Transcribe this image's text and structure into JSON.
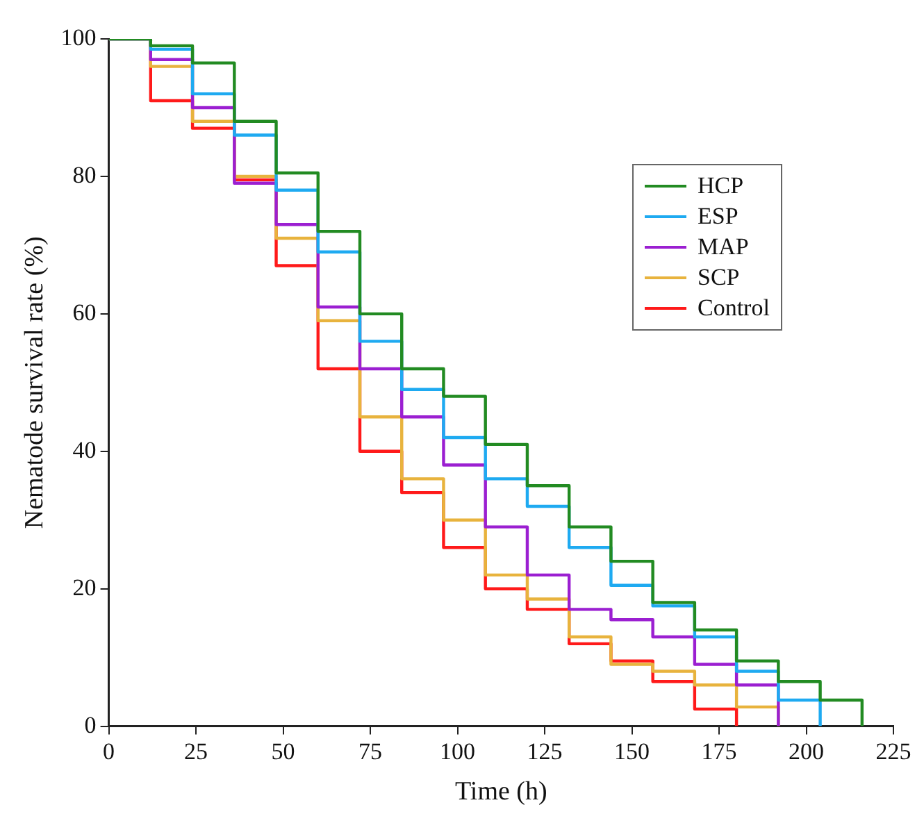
{
  "chart_data": {
    "type": "step",
    "xlabel": "Time (h)",
    "ylabel": "Nematode survival rate (%)",
    "xlim": [
      0,
      225
    ],
    "xticks": [
      0,
      25,
      50,
      75,
      100,
      125,
      150,
      175,
      200,
      225
    ],
    "ylim": [
      0,
      100
    ],
    "yticks": [
      0,
      20,
      40,
      60,
      80,
      100
    ],
    "grid": false,
    "legend": "top right",
    "marker": "none",
    "line_style": "solid",
    "series": [
      {
        "name": "HCP",
        "color": "#228b22",
        "x": [
          0,
          12,
          24,
          36,
          48,
          60,
          72,
          84,
          96,
          108,
          120,
          132,
          144,
          156,
          168,
          180,
          192,
          204,
          216
        ],
        "values": [
          100,
          99,
          96.5,
          88,
          80.5,
          72,
          60,
          52,
          48,
          41,
          35,
          29,
          24,
          18,
          14,
          9.5,
          6.5,
          3.8,
          0
        ]
      },
      {
        "name": "ESP",
        "color": "#1eaaf1",
        "x": [
          0,
          12,
          24,
          36,
          48,
          60,
          72,
          84,
          96,
          108,
          120,
          132,
          144,
          156,
          168,
          180,
          192,
          204
        ],
        "values": [
          100,
          98.5,
          92,
          86,
          78,
          69,
          56,
          49,
          42,
          36,
          32,
          26,
          20.5,
          17.5,
          13,
          8,
          3.8,
          0
        ]
      },
      {
        "name": "MAP",
        "color": "#9b1fd1",
        "x": [
          0,
          12,
          24,
          36,
          48,
          60,
          72,
          84,
          96,
          108,
          120,
          132,
          144,
          156,
          168,
          180,
          192
        ],
        "values": [
          100,
          97,
          90,
          79,
          73,
          61,
          52,
          45,
          38,
          29,
          22,
          17,
          15.5,
          13,
          9,
          6,
          0
        ]
      },
      {
        "name": "SCP",
        "color": "#e8b33d",
        "x": [
          0,
          12,
          24,
          36,
          48,
          60,
          72,
          84,
          96,
          108,
          120,
          132,
          144,
          156,
          168,
          180,
          192
        ],
        "values": [
          100,
          96,
          88,
          80,
          71,
          59,
          45,
          36,
          30,
          22,
          18.5,
          13,
          9,
          8,
          6,
          2.8,
          0
        ]
      },
      {
        "name": "Control",
        "color": "#ff1a1a",
        "x": [
          0,
          12,
          24,
          36,
          48,
          60,
          72,
          84,
          96,
          108,
          120,
          132,
          144,
          156,
          168,
          180
        ],
        "values": [
          100,
          91,
          87,
          79.5,
          67,
          52,
          40,
          34,
          26,
          20,
          17,
          12,
          9.5,
          6.5,
          2.5,
          0
        ]
      }
    ]
  }
}
